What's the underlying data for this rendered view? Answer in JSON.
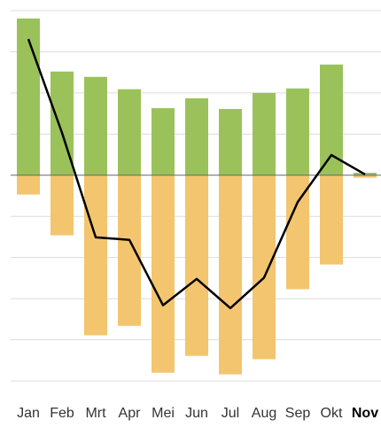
{
  "chart_data": {
    "type": "bar",
    "categories": [
      "Jan",
      "Feb",
      "Mrt",
      "Apr",
      "Mei",
      "Jun",
      "Jul",
      "Aug",
      "Sep",
      "Okt",
      "Nov"
    ],
    "highlighted_category": "Nov",
    "series": [
      {
        "kind": "bar",
        "color": "#9bc25a",
        "values": [
          38.1,
          25.2,
          23.9,
          20.9,
          16.3,
          18.7,
          16.1,
          20,
          21.1,
          26.9,
          0.6
        ]
      },
      {
        "kind": "bar",
        "color": "#f3c56f",
        "values": [
          -4.7,
          -14.6,
          -38.9,
          -36.6,
          -48,
          -43.9,
          -48.4,
          -44.7,
          -27.7,
          -21.7,
          -0.6
        ]
      },
      {
        "kind": "line",
        "color": "#000000",
        "values": [
          33.1,
          10.3,
          -15.1,
          -15.7,
          -31.6,
          -25.2,
          -32.3,
          -24.9,
          -6.5,
          4.9,
          0.2
        ]
      }
    ],
    "ylim": [
      -50,
      40
    ],
    "yticks": [
      -50,
      -40,
      -30,
      -20,
      -10,
      0,
      10,
      20,
      30,
      40
    ],
    "grid": true
  }
}
